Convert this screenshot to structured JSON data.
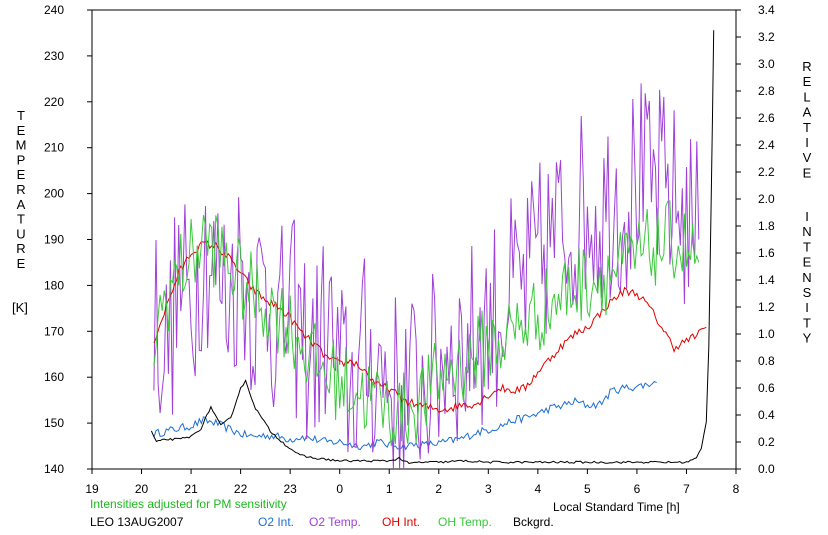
{
  "chart_data": {
    "type": "line",
    "title": "",
    "x_axis": {
      "label": "Local Standard Time [h]",
      "range": [
        19,
        32
      ],
      "ticks": [
        19,
        20,
        21,
        22,
        23,
        24,
        25,
        26,
        27,
        28,
        29,
        30,
        31,
        32
      ],
      "tick_labels": [
        "19",
        "20",
        "21",
        "22",
        "23",
        "0",
        "1",
        "2",
        "3",
        "4",
        "5",
        "6",
        "7",
        "8"
      ]
    },
    "y_left": {
      "label_letters": [
        "T",
        "E",
        "M",
        "P",
        "E",
        "R",
        "A",
        "T",
        "U",
        "R",
        "E"
      ],
      "unit": "[K]",
      "range": [
        140,
        240
      ],
      "ticks": [
        140,
        150,
        160,
        170,
        180,
        190,
        200,
        210,
        220,
        230,
        240
      ]
    },
    "y_right": {
      "label_word1": [
        "R",
        "E",
        "L",
        "A",
        "T",
        "I",
        "V",
        "E"
      ],
      "label_word2": [
        "I",
        "N",
        "T",
        "E",
        "N",
        "S",
        "I",
        "T",
        "Y"
      ],
      "range": [
        0.0,
        3.4
      ],
      "ticks": [
        "0.0",
        "0.2",
        "0.4",
        "0.6",
        "0.8",
        "1.0",
        "1.2",
        "1.4",
        "1.6",
        "1.8",
        "2.0",
        "2.2",
        "2.4",
        "2.6",
        "2.8",
        "3.0",
        "3.2",
        "3.4"
      ]
    },
    "grid": false,
    "legend_position": "bottom",
    "note": "Intensities adjusted for PM sensitivity",
    "station": "LEO 13AUG2007",
    "series": [
      {
        "name": "O2 Int.",
        "axis": "right",
        "color": "#1e6ed2",
        "x": [
          20.25,
          20.5,
          20.75,
          21.0,
          21.25,
          21.5,
          21.75,
          22.0,
          22.25,
          22.5,
          22.75,
          23.0,
          23.25,
          23.5,
          23.75,
          24.0,
          24.25,
          24.5,
          24.75,
          25.0,
          25.25,
          25.5,
          25.75,
          26.0,
          26.25,
          26.5,
          26.75,
          27.0,
          27.25,
          27.5,
          27.75,
          28.0,
          28.25,
          28.5,
          28.75,
          29.0,
          29.25,
          29.5,
          29.75,
          30.0,
          30.25,
          30.4
        ],
        "y": [
          0.26,
          0.28,
          0.3,
          0.32,
          0.36,
          0.34,
          0.3,
          0.26,
          0.24,
          0.25,
          0.24,
          0.22,
          0.24,
          0.22,
          0.2,
          0.2,
          0.18,
          0.17,
          0.2,
          0.18,
          0.17,
          0.18,
          0.18,
          0.19,
          0.21,
          0.23,
          0.27,
          0.29,
          0.32,
          0.36,
          0.38,
          0.41,
          0.45,
          0.47,
          0.5,
          0.47,
          0.48,
          0.58,
          0.6,
          0.61,
          0.63,
          0.64
        ]
      },
      {
        "name": "O2 Temp.",
        "axis": "left",
        "color": "#a040d8",
        "x": [
          20.25,
          20.5,
          20.75,
          21.0,
          21.25,
          21.5,
          21.75,
          22.0,
          22.25,
          22.5,
          22.75,
          23.0,
          23.25,
          23.5,
          23.75,
          24.0,
          24.25,
          24.5,
          24.75,
          25.0,
          25.25,
          25.5,
          25.75,
          26.0,
          26.25,
          26.5,
          26.75,
          27.0,
          27.25,
          27.5,
          27.75,
          28.0,
          28.25,
          28.5,
          28.75,
          29.0,
          29.25,
          29.5,
          29.75,
          30.0,
          30.25,
          30.5,
          30.75,
          31.0,
          31.25
        ],
        "y": [
          175,
          165,
          180,
          175,
          190,
          182,
          178,
          185,
          176,
          180,
          170,
          175,
          168,
          165,
          172,
          160,
          158,
          165,
          162,
          160,
          155,
          158,
          160,
          162,
          168,
          165,
          170,
          172,
          175,
          178,
          180,
          185,
          190,
          192,
          195,
          198,
          195,
          200,
          198,
          205,
          200,
          202,
          198,
          195,
          190
        ]
      },
      {
        "name": "OH Int.",
        "axis": "right",
        "color": "#e00000",
        "x": [
          20.25,
          20.5,
          20.75,
          21.0,
          21.25,
          21.5,
          21.75,
          22.0,
          22.25,
          22.5,
          22.75,
          23.0,
          23.25,
          23.5,
          23.75,
          24.0,
          24.25,
          24.5,
          24.75,
          25.0,
          25.25,
          25.5,
          25.75,
          26.0,
          26.25,
          26.5,
          26.75,
          27.0,
          27.25,
          27.5,
          27.75,
          28.0,
          28.25,
          28.5,
          28.75,
          29.0,
          29.25,
          29.5,
          29.75,
          30.0,
          30.25,
          30.5,
          30.75,
          31.0,
          31.25,
          31.4
        ],
        "y": [
          0.95,
          1.2,
          1.45,
          1.6,
          1.67,
          1.65,
          1.57,
          1.45,
          1.33,
          1.25,
          1.2,
          1.12,
          1.0,
          0.92,
          0.82,
          0.78,
          0.8,
          0.73,
          0.62,
          0.6,
          0.52,
          0.48,
          0.46,
          0.44,
          0.45,
          0.48,
          0.48,
          0.55,
          0.6,
          0.58,
          0.6,
          0.72,
          0.82,
          0.92,
          1.0,
          1.05,
          1.15,
          1.25,
          1.32,
          1.3,
          1.2,
          1.05,
          0.9,
          0.95,
          1.0,
          1.05
        ]
      },
      {
        "name": "OH Temp.",
        "axis": "left",
        "color": "#3cc83c",
        "x": [
          20.25,
          20.5,
          20.75,
          21.0,
          21.25,
          21.5,
          21.75,
          22.0,
          22.25,
          22.5,
          22.75,
          23.0,
          23.25,
          23.5,
          23.75,
          24.0,
          24.25,
          24.5,
          24.75,
          25.0,
          25.25,
          25.5,
          25.75,
          26.0,
          26.25,
          26.5,
          26.75,
          27.0,
          27.25,
          27.5,
          27.75,
          28.0,
          28.25,
          28.5,
          28.75,
          29.0,
          29.25,
          29.5,
          29.75,
          30.0,
          30.25,
          30.5,
          30.75,
          31.0,
          31.25
        ],
        "y": [
          168,
          178,
          183,
          186,
          190,
          188,
          185,
          181,
          178,
          176,
          174,
          171,
          167,
          163,
          161,
          159,
          158,
          156,
          155,
          153,
          152,
          154,
          156,
          160,
          162,
          163,
          165,
          167,
          168,
          170,
          172,
          174,
          176,
          178,
          180,
          181,
          182,
          183,
          184,
          186,
          188,
          189,
          190,
          188,
          185
        ]
      },
      {
        "name": "Bckgrd.",
        "axis": "right",
        "color": "#000000",
        "x": [
          20.2,
          20.3,
          20.5,
          20.75,
          21.0,
          21.2,
          21.4,
          21.6,
          21.8,
          22.0,
          22.1,
          22.3,
          22.6,
          22.9,
          23.2,
          23.5,
          24.0,
          24.5,
          25.0,
          25.2,
          25.4,
          25.6,
          26.0,
          26.5,
          27.0,
          27.5,
          28.0,
          28.5,
          29.0,
          29.5,
          30.0,
          30.5,
          31.0,
          31.2,
          31.3,
          31.4,
          31.45,
          31.5,
          31.55
        ],
        "y": [
          0.28,
          0.2,
          0.22,
          0.22,
          0.24,
          0.3,
          0.46,
          0.32,
          0.38,
          0.6,
          0.65,
          0.45,
          0.28,
          0.18,
          0.1,
          0.08,
          0.06,
          0.06,
          0.06,
          0.08,
          0.04,
          0.05,
          0.05,
          0.06,
          0.05,
          0.05,
          0.05,
          0.05,
          0.05,
          0.05,
          0.05,
          0.05,
          0.05,
          0.08,
          0.15,
          0.35,
          0.9,
          2.0,
          3.25
        ]
      }
    ]
  }
}
